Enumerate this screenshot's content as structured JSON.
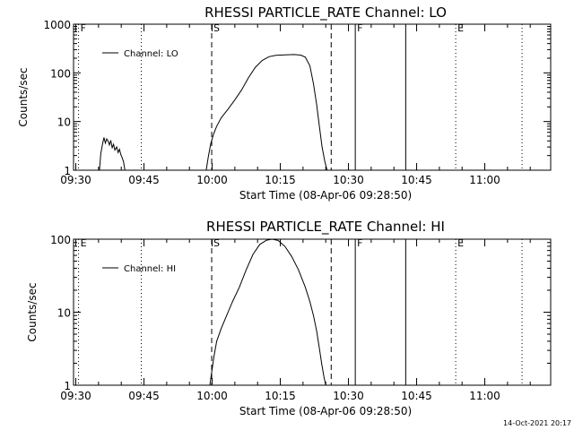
{
  "chart_data": [
    {
      "type": "line",
      "title": "RHESSI PARTICLE_RATE Channel: LO",
      "xlabel": "Start Time (08-Apr-06 09:28:50)",
      "ylabel": "Counts/sec",
      "x_ticks": [
        "09:30",
        "09:45",
        "10:00",
        "10:15",
        "10:30",
        "10:45",
        "11:00"
      ],
      "y_ticks": [
        "1",
        "10",
        "100",
        "1000"
      ],
      "y_scale": "log",
      "ylim": [
        1,
        1000
      ],
      "legend": "Channel: LO",
      "legend_position": "top-left",
      "series": [
        {
          "name": "Channel: LO",
          "segments": [
            [
              [
                35.2,
                1
              ],
              [
                35.5,
                2.2
              ],
              [
                35.9,
                3.5
              ],
              [
                36.2,
                4.7
              ],
              [
                36.5,
                3.6
              ],
              [
                36.8,
                4.4
              ],
              [
                37.1,
                4.0
              ],
              [
                37.4,
                3.3
              ],
              [
                37.7,
                4.1
              ],
              [
                38.0,
                2.9
              ],
              [
                38.3,
                3.4
              ],
              [
                38.6,
                2.6
              ],
              [
                39.0,
                3.0
              ],
              [
                39.3,
                2.3
              ],
              [
                39.6,
                2.7
              ],
              [
                39.9,
                2.1
              ],
              [
                40.2,
                1.8
              ],
              [
                40.5,
                1.5
              ],
              [
                40.8,
                1
              ]
            ],
            [
              [
                58.7,
                1
              ],
              [
                59.2,
                2.0
              ],
              [
                59.7,
                3.5
              ],
              [
                60.3,
                5.5
              ],
              [
                61.0,
                8.0
              ],
              [
                62.0,
                12
              ],
              [
                63.5,
                18
              ],
              [
                65.0,
                28
              ],
              [
                66.5,
                45
              ],
              [
                68.0,
                80
              ],
              [
                69.5,
                130
              ],
              [
                71.0,
                180
              ],
              [
                72.5,
                215
              ],
              [
                74.0,
                230
              ],
              [
                76.0,
                235
              ],
              [
                78.0,
                238
              ],
              [
                79.5,
                232
              ],
              [
                80.5,
                210
              ],
              [
                81.5,
                140
              ],
              [
                82.3,
                60
              ],
              [
                83.0,
                22
              ],
              [
                83.6,
                8
              ],
              [
                84.2,
                3
              ],
              [
                84.8,
                1.5
              ],
              [
                85.3,
                1
              ]
            ]
          ]
        }
      ],
      "markers": [
        {
          "label": "F",
          "at": 30.6,
          "style": "dotted"
        },
        {
          "label": "",
          "at": 44.4,
          "style": "dotted"
        },
        {
          "label": "S",
          "at": 59.9,
          "style": "dashed"
        },
        {
          "label": "",
          "at": 86.2,
          "style": "dashed"
        },
        {
          "label": "F",
          "at": 91.5,
          "style": "solid"
        },
        {
          "label": "",
          "at": 102.6,
          "style": "solid"
        },
        {
          "label": "E",
          "at": 113.6,
          "style": "dotted"
        },
        {
          "label": "",
          "at": 128.2,
          "style": "dotted"
        }
      ]
    },
    {
      "type": "line",
      "title": "RHESSI PARTICLE_RATE Channel: HI",
      "xlabel": "Start Time (08-Apr-06 09:28:50)",
      "ylabel": "Counts/sec",
      "x_ticks": [
        "09:30",
        "09:45",
        "10:00",
        "10:15",
        "10:30",
        "10:45",
        "11:00"
      ],
      "y_ticks": [
        "1",
        "10",
        "100"
      ],
      "y_scale": "log",
      "ylim": [
        1,
        100
      ],
      "legend": "Channel: HI",
      "legend_position": "top-left",
      "series": [
        {
          "name": "Channel: HI",
          "segments": [
            [
              [
                59.5,
                1
              ],
              [
                59.9,
                1.5
              ],
              [
                60.4,
                2.5
              ],
              [
                61.0,
                4
              ],
              [
                62.0,
                6
              ],
              [
                63.2,
                9
              ],
              [
                64.5,
                14
              ],
              [
                66.0,
                22
              ],
              [
                67.5,
                38
              ],
              [
                69.0,
                62
              ],
              [
                70.5,
                85
              ],
              [
                72.0,
                97
              ],
              [
                73.2,
                100
              ],
              [
                74.5,
                96
              ],
              [
                76.0,
                80
              ],
              [
                77.5,
                58
              ],
              [
                79.0,
                38
              ],
              [
                80.5,
                22
              ],
              [
                81.5,
                14
              ],
              [
                82.3,
                9
              ],
              [
                83.0,
                5.5
              ],
              [
                83.6,
                3.2
              ],
              [
                84.1,
                2
              ],
              [
                84.6,
                1.3
              ],
              [
                85.0,
                1
              ]
            ]
          ]
        }
      ],
      "markers": [
        {
          "label": "E",
          "at": 30.6,
          "style": "dotted"
        },
        {
          "label": "",
          "at": 44.4,
          "style": "dotted"
        },
        {
          "label": "S",
          "at": 59.9,
          "style": "dashed"
        },
        {
          "label": "",
          "at": 86.2,
          "style": "dashed"
        },
        {
          "label": "F",
          "at": 91.5,
          "style": "solid"
        },
        {
          "label": "",
          "at": 102.6,
          "style": "solid"
        },
        {
          "label": "E",
          "at": 113.6,
          "style": "dotted"
        },
        {
          "label": "",
          "at": 128.2,
          "style": "dotted"
        }
      ]
    }
  ],
  "footer": "14-Oct-2021 20:17"
}
